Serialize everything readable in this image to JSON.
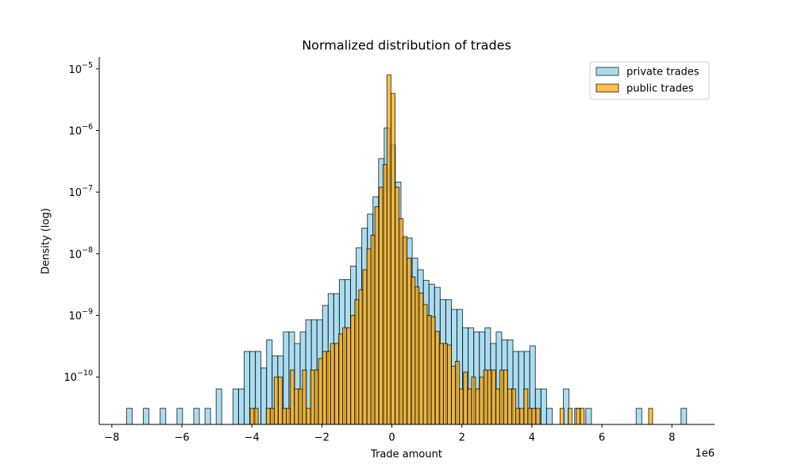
{
  "chart_data": {
    "type": "histogram",
    "title": "Normalized distribution of trades",
    "x_label": "Trade amount",
    "y_label": "Density (log)",
    "x_offset_label": "1e6",
    "y_scale": "log",
    "legend_position": "upper right",
    "alpha": 0.7,
    "edge_color": "#000000",
    "xlim": [
      -8.36,
      9.22
    ],
    "ylim": [
      1.7e-11,
      1.55e-05
    ],
    "xticks": [
      {
        "value": -8,
        "label": "−8"
      },
      {
        "value": -6,
        "label": "−6"
      },
      {
        "value": -4,
        "label": "−4"
      },
      {
        "value": -2,
        "label": "−2"
      },
      0,
      2,
      4,
      6,
      8
    ],
    "yticks": [
      {
        "value": 1e-10,
        "label": "10",
        "exponent": "−10"
      },
      {
        "value": 1e-09,
        "label": "10",
        "exponent": "−9"
      },
      {
        "value": 1e-08,
        "label": "10",
        "exponent": "−8"
      },
      {
        "value": 1e-07,
        "label": "10",
        "exponent": "−7"
      },
      {
        "value": 1e-06,
        "label": "10",
        "exponent": "−6"
      },
      {
        "value": 1e-05,
        "label": "10",
        "exponent": "−5"
      }
    ],
    "series": [
      {
        "name": "private trades",
        "color": "skyblue",
        "bins": [
          -7.58,
          -7.42,
          -7.26,
          -7.1,
          -6.94,
          -6.78,
          -6.62,
          -6.46,
          -6.3,
          -6.14,
          -5.98,
          -5.82,
          -5.66,
          -5.5,
          -5.34,
          -5.18,
          -5.02,
          -4.86,
          -4.7,
          -4.54,
          -4.38,
          -4.22,
          -4.06,
          -3.9,
          -3.74,
          -3.58,
          -3.42,
          -3.26,
          -3.1,
          -2.94,
          -2.78,
          -2.62,
          -2.46,
          -2.3,
          -2.14,
          -1.98,
          -1.82,
          -1.66,
          -1.5,
          -1.34,
          -1.18,
          -1.02,
          -0.86,
          -0.7,
          -0.54,
          -0.38,
          -0.22,
          -0.06,
          0.1,
          0.26,
          0.42,
          0.58,
          0.74,
          0.9,
          1.06,
          1.22,
          1.38,
          1.54,
          1.7,
          1.86,
          2.02,
          2.18,
          2.34,
          2.5,
          2.66,
          2.82,
          2.98,
          3.14,
          3.3,
          3.46,
          3.62,
          3.78,
          3.94,
          4.1,
          4.26,
          4.42,
          4.58,
          4.74,
          4.9,
          5.06,
          5.22,
          5.38,
          5.54,
          5.7,
          5.86,
          6.02,
          6.18,
          6.34,
          6.5,
          6.66,
          6.82,
          6.98,
          7.14,
          7.3,
          7.46,
          7.62,
          7.78,
          7.94,
          8.1,
          8.26,
          8.42
        ],
        "values": [
          3.1e-11,
          0,
          0,
          3.1e-11,
          0,
          0,
          3.1e-11,
          0,
          0,
          3.1e-11,
          0,
          0,
          3.1e-11,
          0,
          3.1e-11,
          0,
          6.4e-11,
          0,
          0,
          6.4e-11,
          6.4e-11,
          2.6e-10,
          2.6e-10,
          2.6e-10,
          1.4e-10,
          4e-10,
          2.2e-10,
          2.2e-10,
          5.4e-10,
          5.4e-10,
          3.5e-10,
          5.4e-10,
          8.5e-10,
          8.5e-10,
          8.5e-10,
          1.45e-09,
          2.25e-09,
          2.25e-09,
          3.8e-09,
          3.8e-09,
          6.3e-09,
          1.25e-08,
          2.6e-08,
          4.4e-08,
          8.4e-08,
          3.5e-07,
          1.1e-06,
          5.8e-07,
          1.45e-07,
          1.8e-08,
          1.8e-08,
          8.5e-09,
          5.5e-09,
          3.7e-09,
          3.2e-09,
          2.85e-09,
          1.8e-09,
          1.8e-09,
          1.25e-09,
          1.25e-09,
          6.3e-10,
          6.3e-10,
          5.4e-10,
          5.4e-10,
          6.3e-10,
          3.5e-10,
          5.4e-10,
          4e-10,
          4e-10,
          2.6e-10,
          2.6e-10,
          2.6e-10,
          3.2e-10,
          6.4e-11,
          6.4e-11,
          3.1e-11,
          0,
          0,
          6.4e-11,
          0,
          3.1e-11,
          0,
          3.1e-11,
          0,
          0,
          0,
          0,
          0,
          0,
          0,
          0,
          3.1e-11,
          0,
          0,
          0,
          0,
          0,
          0,
          0,
          3.1e-11
        ]
      },
      {
        "name": "public trades",
        "color": "orange",
        "bins": [
          -4.05,
          -3.935,
          -3.82,
          -3.705,
          -3.59,
          -3.475,
          -3.36,
          -3.245,
          -3.13,
          -3.015,
          -2.9,
          -2.785,
          -2.67,
          -2.555,
          -2.44,
          -2.325,
          -2.21,
          -2.095,
          -1.98,
          -1.865,
          -1.75,
          -1.635,
          -1.52,
          -1.405,
          -1.29,
          -1.175,
          -1.06,
          -0.945,
          -0.83,
          -0.715,
          -0.6,
          -0.485,
          -0.37,
          -0.255,
          -0.14,
          -0.025,
          0.09,
          0.205,
          0.32,
          0.435,
          0.55,
          0.665,
          0.78,
          0.895,
          1.01,
          1.125,
          1.24,
          1.355,
          1.47,
          1.585,
          1.7,
          1.815,
          1.93,
          2.045,
          2.16,
          2.275,
          2.39,
          2.505,
          2.62,
          2.735,
          2.85,
          2.965,
          3.08,
          3.195,
          3.31,
          3.425,
          3.54,
          3.655,
          3.77,
          3.885,
          4.0,
          4.115,
          4.23,
          4.345,
          4.46,
          4.575,
          4.69,
          4.805,
          4.92,
          5.035,
          5.15,
          5.265,
          5.38,
          5.495,
          5.61,
          5.725,
          5.84,
          5.955,
          6.07,
          6.185,
          6.3,
          6.415,
          6.53,
          6.645,
          6.76,
          6.875,
          6.99,
          7.105,
          7.22,
          7.335,
          7.45
        ],
        "values": [
          3.1e-11,
          3.1e-11,
          0,
          0,
          3.1e-11,
          3.1e-11,
          1e-10,
          1e-10,
          3.1e-11,
          3.1e-11,
          1.3e-10,
          6.4e-11,
          6.4e-11,
          1.3e-10,
          3.1e-11,
          1.3e-10,
          1.3e-10,
          2e-10,
          2.6e-10,
          2.6e-10,
          3.5e-10,
          3.5e-10,
          5e-10,
          6.3e-10,
          6.3e-10,
          1e-09,
          1.8e-09,
          2.6e-09,
          5.5e-09,
          1.2e-08,
          2e-08,
          5.8e-08,
          1.2e-07,
          2.8e-07,
          8e-06,
          4e-06,
          1.2e-07,
          3.7e-08,
          1.9e-08,
          8.5e-09,
          4.2e-09,
          2.9e-09,
          2.3e-09,
          1.5e-09,
          1e-09,
          9.5e-10,
          5.5e-10,
          3.5e-10,
          3.5e-10,
          3.3e-10,
          1.5e-10,
          1.8e-10,
          6.4e-11,
          1.2e-10,
          6.4e-11,
          1e-10,
          6.4e-11,
          1e-10,
          1.3e-10,
          1.3e-10,
          1.3e-10,
          6.4e-11,
          1.3e-10,
          1.3e-10,
          6.4e-11,
          6.4e-11,
          3.1e-11,
          3.1e-11,
          6.4e-11,
          3.1e-11,
          3.1e-11,
          3.1e-11,
          0,
          0,
          0,
          0,
          0,
          3.1e-11,
          0,
          3.1e-11,
          0,
          3.1e-11,
          3.1e-11,
          0,
          0,
          0,
          0,
          0,
          0,
          0,
          0,
          0,
          0,
          0,
          0,
          0,
          0,
          0,
          0,
          3.1e-11
        ]
      }
    ]
  }
}
